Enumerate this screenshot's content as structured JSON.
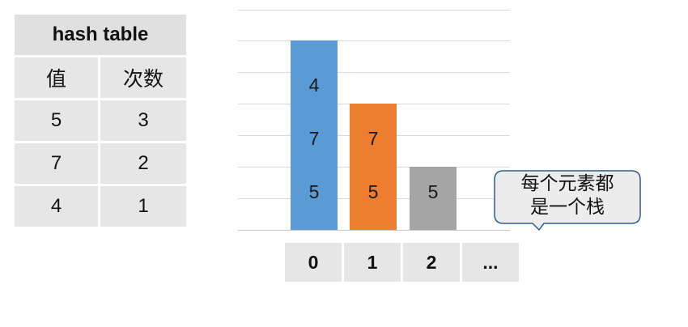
{
  "hash_table": {
    "title": "hash table",
    "headers": [
      "值",
      "次数"
    ],
    "rows": [
      [
        "5",
        "3"
      ],
      [
        "7",
        "2"
      ],
      [
        "4",
        "1"
      ]
    ]
  },
  "chart_data": {
    "type": "bar",
    "categories": [
      "0",
      "1",
      "2"
    ],
    "stacks": [
      {
        "index": "0",
        "elements": [
          "5",
          "7",
          "4"
        ],
        "color": "#5b9bd5"
      },
      {
        "index": "1",
        "elements": [
          "5",
          "7"
        ],
        "color": "#ed7d31"
      },
      {
        "index": "2",
        "elements": [
          "5"
        ],
        "color": "#a5a5a5"
      }
    ]
  },
  "index_cells": [
    "0",
    "1",
    "2",
    "..."
  ],
  "callout": {
    "line1": "每个元素都",
    "line2": "是一个栈"
  }
}
